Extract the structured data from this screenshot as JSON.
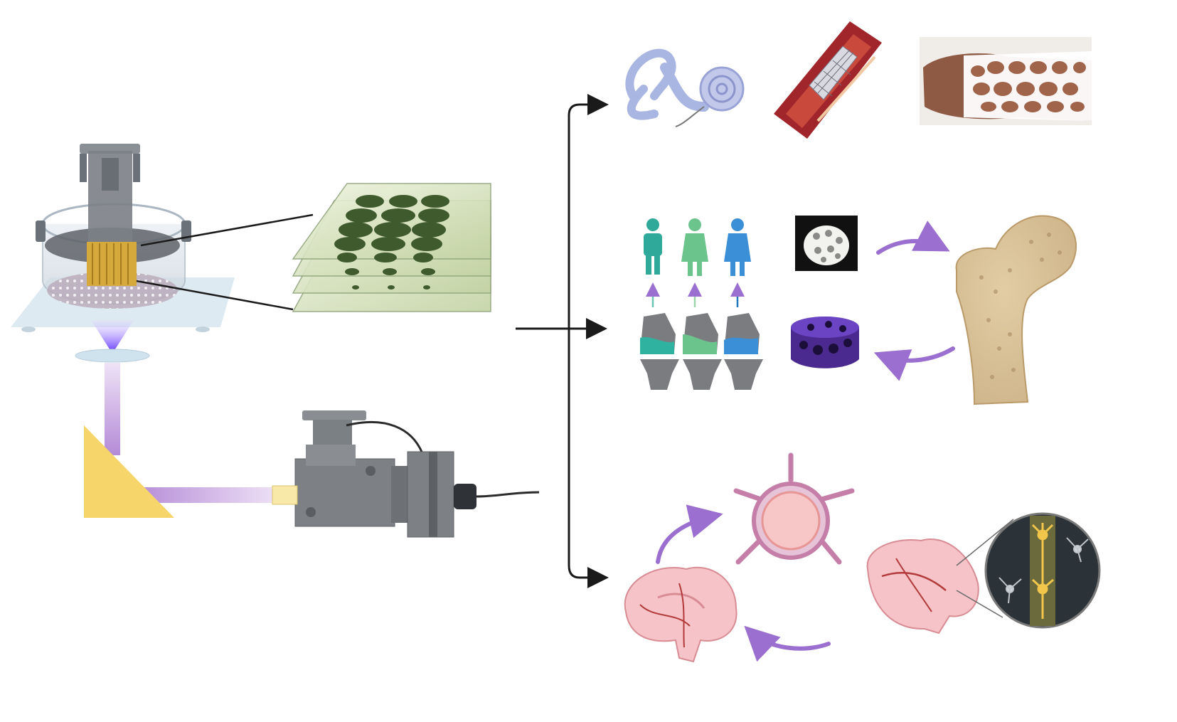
{
  "figure": {
    "printer": {
      "components": [
        "resin-vat",
        "build-platform",
        "printed-part",
        "projection-window",
        "light-beam",
        "prism-mirror",
        "light-projector"
      ]
    },
    "layer_stack": {
      "layer_count": 4
    },
    "applications": [
      {
        "group": "medical-devices",
        "items": [
          "inner-ear-cochlear-implant",
          "vascular-stent",
          "wrist-cast"
        ]
      },
      {
        "group": "bone-and-joint",
        "items": [
          "patient-specific-knee-implants",
          "porous-bone-scaffold",
          "bone-scaffold",
          "femur-bone"
        ]
      },
      {
        "group": "neural",
        "items": [
          "brain-sagittal",
          "vessel-cross-section",
          "brain-with-neuron-inset"
        ]
      }
    ],
    "colors": {
      "flow_arrow": "#1a1a1a",
      "cycle_arrow": "#9b6fd0",
      "uv_light": "#7b3cff",
      "beam": "#c8a8e0",
      "prism": "#f6d56a",
      "bone": "#e7d3ae",
      "brain": "#f5c3c8",
      "vessel": "#b23a3a",
      "person_1": "#2fa99a",
      "person_2": "#6cc48d",
      "person_3": "#3b8fd6"
    }
  }
}
